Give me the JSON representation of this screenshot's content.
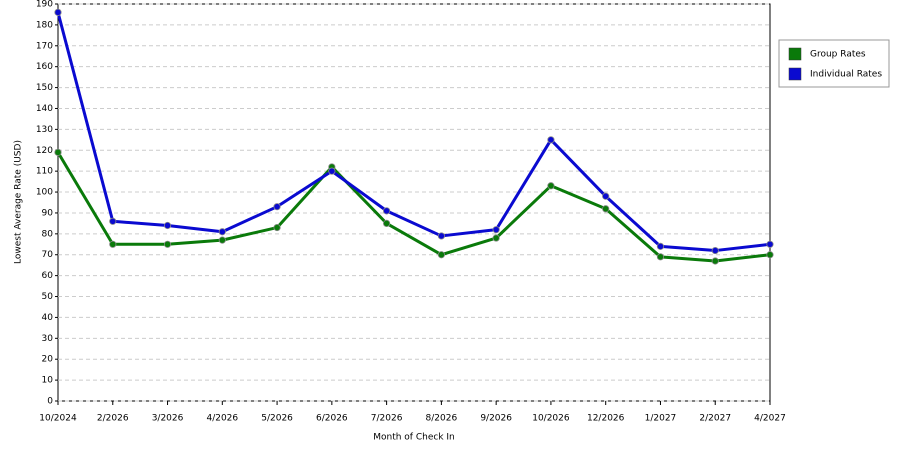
{
  "chart_data": {
    "type": "line",
    "x_label": "Month of Check In",
    "y_label": "Lowest Average Rate (USD)",
    "categories": [
      "10/2024",
      "2/2026",
      "3/2026",
      "4/2026",
      "5/2026",
      "6/2026",
      "7/2026",
      "8/2026",
      "9/2026",
      "10/2026",
      "12/2026",
      "1/2027",
      "2/2027",
      "4/2027"
    ],
    "series": [
      {
        "name": "Group Rates",
        "color": "#0a7a0a",
        "values": [
          119,
          75,
          75,
          77,
          83,
          112,
          85,
          70,
          78,
          103,
          92,
          69,
          67,
          70
        ]
      },
      {
        "name": "Individual Rates",
        "color": "#0a0ad0",
        "values": [
          186,
          86,
          84,
          81,
          93,
          110,
          91,
          79,
          82,
          125,
          98,
          74,
          72,
          75
        ]
      }
    ],
    "ylim": [
      0,
      190
    ],
    "yticks": [
      0,
      10,
      20,
      30,
      40,
      50,
      60,
      70,
      80,
      90,
      100,
      110,
      120,
      130,
      140,
      150,
      160,
      170,
      180,
      190
    ],
    "grid": true,
    "legend": "right"
  }
}
